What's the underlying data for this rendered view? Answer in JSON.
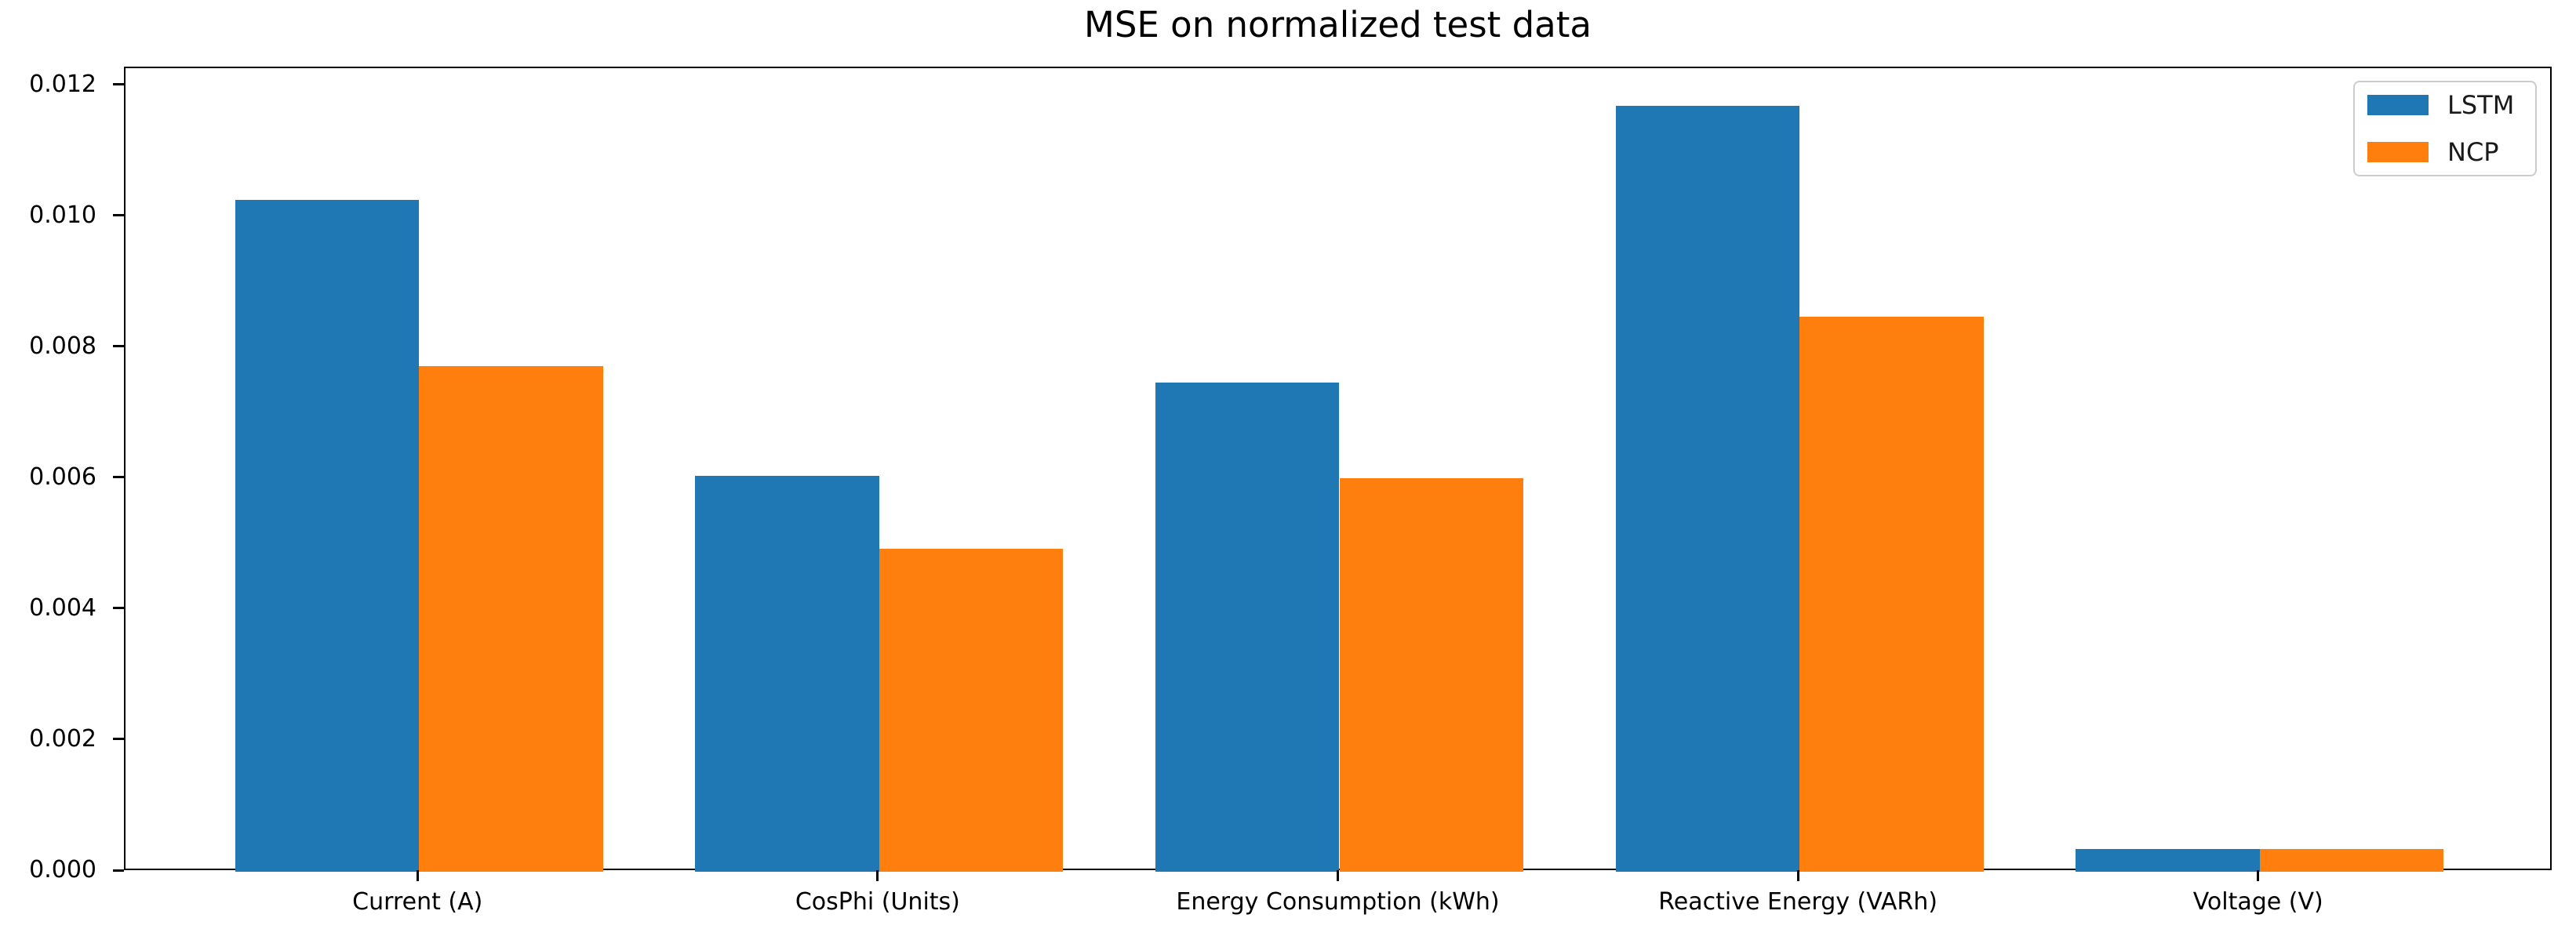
{
  "chart_data": {
    "type": "bar",
    "title": "MSE on normalized test data",
    "xlabel": "",
    "ylabel": "",
    "categories": [
      "Current (A)",
      "CosPhi (Units)",
      "Energy Consumption (kWh)",
      "Reactive Energy (VARh)",
      "Voltage (V)"
    ],
    "series": [
      {
        "name": "LSTM",
        "color": "#1f77b4",
        "values": [
          0.01026,
          0.00605,
          0.00747,
          0.0117,
          0.00035
        ]
      },
      {
        "name": "NCP",
        "color": "#ff7f0e",
        "values": [
          0.00772,
          0.00493,
          0.00601,
          0.00848,
          0.00035
        ]
      }
    ],
    "bar_width": 0.4,
    "grid": false,
    "legend_position": "upper right",
    "xlim": [
      -0.638,
      4.638
    ],
    "ylim": [
      0,
      0.012275
    ],
    "y_ticks": [
      {
        "label": "0.000",
        "value": 0.0
      },
      {
        "label": "0.002",
        "value": 0.002
      },
      {
        "label": "0.004",
        "value": 0.004
      },
      {
        "label": "0.006",
        "value": 0.006
      },
      {
        "label": "0.008",
        "value": 0.008
      },
      {
        "label": "0.010",
        "value": 0.01
      },
      {
        "label": "0.012",
        "value": 0.012
      }
    ]
  }
}
